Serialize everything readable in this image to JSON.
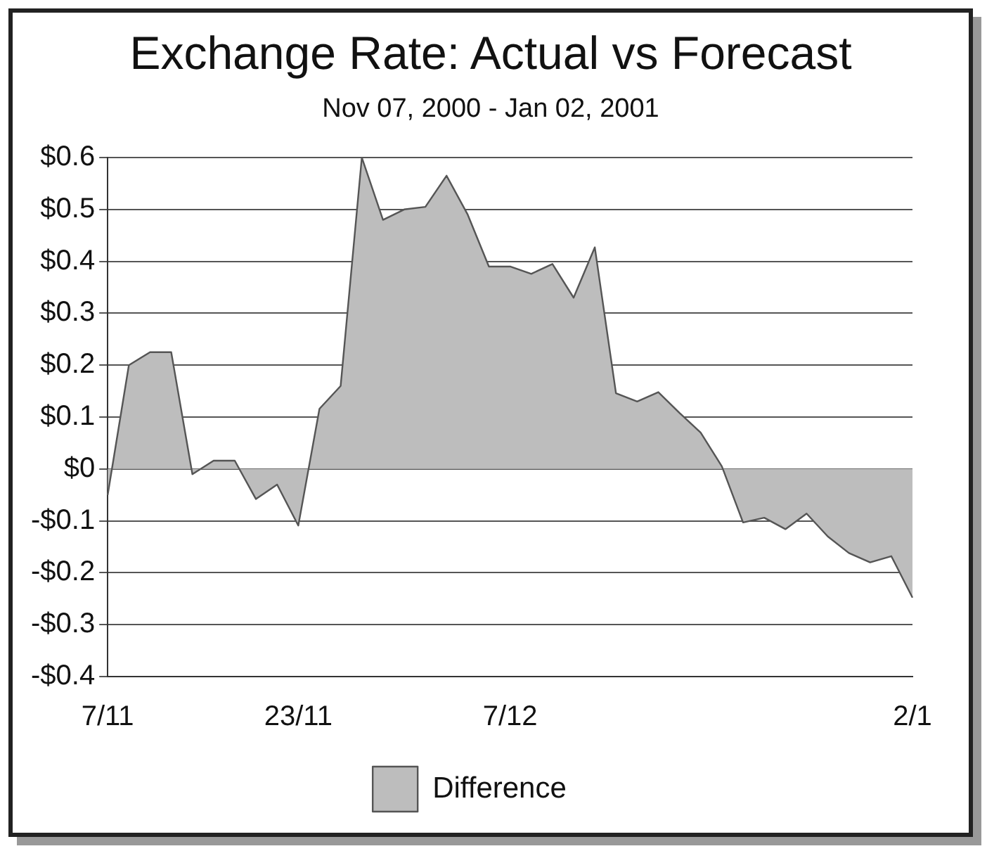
{
  "chart_data": {
    "type": "area",
    "title": "Exchange Rate: Actual vs Forecast",
    "subtitle": "Nov 07, 2000 - Jan 02, 2001",
    "categories": [
      "7/11",
      null,
      null,
      null,
      null,
      null,
      null,
      null,
      null,
      "23/11",
      null,
      null,
      null,
      null,
      null,
      null,
      null,
      null,
      null,
      "7/12",
      null,
      null,
      null,
      null,
      null,
      null,
      null,
      null,
      null,
      null,
      null,
      null,
      null,
      null,
      null,
      null,
      null,
      null,
      "2/1"
    ],
    "series": [
      {
        "name": "Difference",
        "color": "#bdbdbd",
        "values": [
          -0.05,
          0.2,
          0.225,
          0.225,
          -0.01,
          0.016,
          0.016,
          -0.058,
          -0.03,
          -0.109,
          0.116,
          0.16,
          0.6,
          0.48,
          0.5,
          0.505,
          0.565,
          0.49,
          0.39,
          0.39,
          0.376,
          0.395,
          0.33,
          0.427,
          0.146,
          0.13,
          0.148,
          0.108,
          0.07,
          0.005,
          -0.103,
          -0.094,
          -0.116,
          -0.086,
          -0.13,
          -0.162,
          -0.18,
          -0.168,
          -0.248
        ]
      }
    ],
    "ylim": [
      -0.4,
      0.6
    ],
    "yticks": [
      {
        "value": -0.4,
        "label": "-$0.4"
      },
      {
        "value": -0.3,
        "label": "-$0.3"
      },
      {
        "value": -0.2,
        "label": "-$0.2"
      },
      {
        "value": -0.1,
        "label": "-$0.1"
      },
      {
        "value": 0,
        "label": "$0"
      },
      {
        "value": 0.1,
        "label": "$0.1"
      },
      {
        "value": 0.2,
        "label": "$0.2"
      },
      {
        "value": 0.3,
        "label": "$0.3"
      },
      {
        "value": 0.4,
        "label": "$0.4"
      },
      {
        "value": 0.5,
        "label": "$0.5"
      },
      {
        "value": 0.6,
        "label": "$0.6"
      }
    ],
    "grid": "y",
    "legend": "bottom"
  }
}
